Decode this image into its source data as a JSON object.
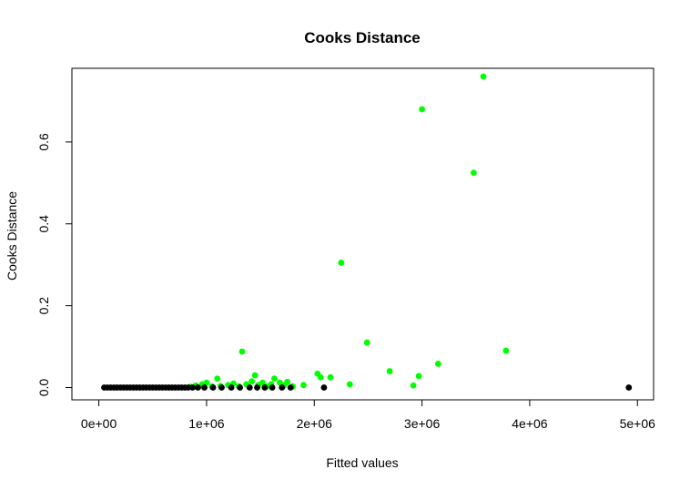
{
  "chart_data": {
    "type": "scatter",
    "title": "Cooks Distance",
    "xlabel": "Fitted values",
    "ylabel": "Cooks Distance",
    "xlim": [
      -250000,
      5150000
    ],
    "ylim": [
      -0.03,
      0.78
    ],
    "x_ticks": [
      {
        "value": 0,
        "label": "0e+00"
      },
      {
        "value": 1000000,
        "label": "1e+06"
      },
      {
        "value": 2000000,
        "label": "2e+06"
      },
      {
        "value": 3000000,
        "label": "3e+06"
      },
      {
        "value": 4000000,
        "label": "4e+06"
      },
      {
        "value": 5000000,
        "label": "5e+06"
      }
    ],
    "y_ticks": [
      {
        "value": 0.0,
        "label": "0.0"
      },
      {
        "value": 0.2,
        "label": "0.2"
      },
      {
        "value": 0.4,
        "label": "0.4"
      },
      {
        "value": 0.6,
        "label": "0.6"
      }
    ],
    "grid": false,
    "colors": {
      "low": "#000000",
      "high": "#00ff00"
    },
    "series": [
      {
        "color": "#00ff00",
        "points": [
          [
            850000,
            0.002
          ],
          [
            900000,
            0.005
          ],
          [
            960000,
            0.008
          ],
          [
            1000000,
            0.012
          ],
          [
            1050000,
            0.003
          ],
          [
            1100000,
            0.022
          ],
          [
            1130000,
            0.004
          ],
          [
            1200000,
            0.006
          ],
          [
            1250000,
            0.01
          ],
          [
            1300000,
            0.003
          ],
          [
            1330000,
            0.088
          ],
          [
            1370000,
            0.008
          ],
          [
            1420000,
            0.015
          ],
          [
            1450000,
            0.03
          ],
          [
            1480000,
            0.006
          ],
          [
            1520000,
            0.012
          ],
          [
            1560000,
            0.003
          ],
          [
            1600000,
            0.008
          ],
          [
            1630000,
            0.022
          ],
          [
            1680000,
            0.012
          ],
          [
            1720000,
            0.005
          ],
          [
            1750000,
            0.014
          ],
          [
            1800000,
            0.003
          ],
          [
            1900000,
            0.006
          ],
          [
            2030000,
            0.034
          ],
          [
            2060000,
            0.025
          ],
          [
            2150000,
            0.025
          ],
          [
            2250000,
            0.305
          ],
          [
            2330000,
            0.008
          ],
          [
            2490000,
            0.11
          ],
          [
            2700000,
            0.04
          ],
          [
            2920000,
            0.005
          ],
          [
            2970000,
            0.028
          ],
          [
            3000000,
            0.68
          ],
          [
            3150000,
            0.058
          ],
          [
            3480000,
            0.525
          ],
          [
            3570000,
            0.76
          ],
          [
            3780000,
            0.09
          ]
        ]
      },
      {
        "color": "#000000",
        "points": [
          [
            50000,
            0.0
          ],
          [
            80000,
            0.0
          ],
          [
            110000,
            0.0
          ],
          [
            140000,
            0.0
          ],
          [
            170000,
            0.0
          ],
          [
            200000,
            0.0
          ],
          [
            230000,
            0.0
          ],
          [
            260000,
            0.0
          ],
          [
            290000,
            0.0
          ],
          [
            320000,
            0.0
          ],
          [
            350000,
            0.0
          ],
          [
            380000,
            0.0
          ],
          [
            410000,
            0.0
          ],
          [
            440000,
            0.0
          ],
          [
            470000,
            0.0
          ],
          [
            500000,
            0.0
          ],
          [
            530000,
            0.0
          ],
          [
            560000,
            0.0
          ],
          [
            590000,
            0.0
          ],
          [
            620000,
            0.0
          ],
          [
            650000,
            0.0
          ],
          [
            680000,
            0.0
          ],
          [
            710000,
            0.0
          ],
          [
            740000,
            0.0
          ],
          [
            770000,
            0.0
          ],
          [
            800000,
            0.0
          ],
          [
            830000,
            0.0
          ],
          [
            870000,
            0.0
          ],
          [
            920000,
            0.0
          ],
          [
            980000,
            0.0
          ],
          [
            1060000,
            0.0
          ],
          [
            1140000,
            0.0
          ],
          [
            1230000,
            0.0
          ],
          [
            1310000,
            0.0
          ],
          [
            1400000,
            0.0
          ],
          [
            1470000,
            0.0
          ],
          [
            1540000,
            0.0
          ],
          [
            1610000,
            0.0
          ],
          [
            1700000,
            0.0
          ],
          [
            1780000,
            0.0
          ],
          [
            2090000,
            0.0
          ],
          [
            4920000,
            0.0
          ]
        ]
      }
    ]
  }
}
